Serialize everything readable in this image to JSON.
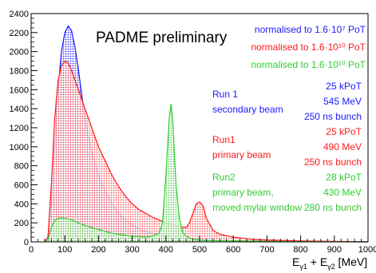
{
  "chart_data": {
    "type": "histogram",
    "title": "PADME preliminary",
    "xlabel": {
      "main": "E",
      "sub1": "γ1",
      "sep": " + E",
      "sub2": "γ2",
      "unit": " [MeV]"
    },
    "xlim": [
      0,
      1000
    ],
    "ylim": [
      0,
      2400
    ],
    "xticks": [
      0,
      100,
      200,
      300,
      400,
      500,
      600,
      700,
      800,
      900,
      1000
    ],
    "yticks": [
      0,
      200,
      400,
      600,
      800,
      1000,
      1200,
      1400,
      1600,
      1800,
      2000,
      2200,
      2400
    ],
    "legend": [
      {
        "text": "normalised to 1.6·10⁷ PoT",
        "color": "#1a1aff"
      },
      {
        "text": "normalised to 1.6·10¹⁰ PoT",
        "color": "#ff1a1a"
      },
      {
        "text": "normalised to 1.6·10¹⁰ PoT",
        "color": "#33cc33"
      }
    ],
    "series": [
      {
        "color": "#1a1aff",
        "x": [
          40,
          50,
          60,
          70,
          80,
          90,
          100,
          110,
          120,
          130,
          140,
          150,
          160,
          170,
          180,
          190,
          200,
          220,
          240,
          260,
          280,
          300,
          320,
          340,
          360,
          380,
          400,
          420,
          440,
          460,
          480,
          500,
          550,
          600,
          650,
          700,
          800,
          900,
          1000
        ],
        "y": [
          0,
          50,
          400,
          1000,
          1600,
          2000,
          2200,
          2270,
          2220,
          2050,
          1820,
          1550,
          1300,
          1100,
          950,
          820,
          700,
          530,
          400,
          300,
          230,
          180,
          140,
          110,
          90,
          70,
          60,
          50,
          40,
          35,
          30,
          25,
          15,
          10,
          8,
          5,
          3,
          2,
          0
        ]
      },
      {
        "color": "#ff1a1a",
        "x": [
          40,
          50,
          60,
          70,
          80,
          90,
          100,
          110,
          120,
          130,
          140,
          150,
          160,
          170,
          180,
          190,
          200,
          220,
          240,
          260,
          280,
          300,
          320,
          340,
          360,
          380,
          400,
          420,
          440,
          460,
          470,
          480,
          490,
          500,
          510,
          520,
          540,
          560,
          600,
          650,
          700,
          800,
          900,
          1000
        ],
        "y": [
          0,
          50,
          600,
          1300,
          1700,
          1850,
          1900,
          1880,
          1800,
          1700,
          1600,
          1500,
          1400,
          1300,
          1200,
          1100,
          1000,
          850,
          700,
          580,
          480,
          400,
          340,
          300,
          260,
          230,
          200,
          180,
          160,
          150,
          200,
          300,
          400,
          420,
          380,
          250,
          120,
          80,
          50,
          30,
          20,
          10,
          5,
          0
        ]
      },
      {
        "color": "#33cc33",
        "x": [
          40,
          50,
          60,
          70,
          80,
          100,
          120,
          140,
          160,
          180,
          200,
          220,
          240,
          260,
          280,
          300,
          320,
          340,
          360,
          380,
          390,
          400,
          410,
          415,
          420,
          430,
          440,
          450,
          460,
          470,
          480,
          500,
          520,
          600,
          700,
          800,
          1000
        ],
        "y": [
          0,
          20,
          150,
          220,
          250,
          250,
          230,
          200,
          170,
          150,
          130,
          110,
          90,
          80,
          70,
          60,
          55,
          50,
          60,
          90,
          200,
          700,
          1300,
          1450,
          1300,
          600,
          250,
          100,
          60,
          40,
          30,
          20,
          15,
          10,
          5,
          2,
          0
        ]
      }
    ]
  },
  "annotations": {
    "run1_secondary": {
      "left": [
        "Run 1",
        "secondary beam"
      ],
      "right": [
        "25 kPoT",
        "545 MeV",
        "250 ns bunch"
      ],
      "color": "#1a1aff"
    },
    "run1_primary": {
      "left": [
        "Run1",
        "primary beam"
      ],
      "right": [
        "25 kPoT",
        "490 MeV",
        "250 ns bunch"
      ],
      "color": "#ff1a1a"
    },
    "run2": {
      "left": [
        "Run2",
        "primary beam,",
        "moved mylar window"
      ],
      "right": [
        "28 kPoT",
        "430 MeV",
        "280 ns bunch"
      ],
      "color": "#33cc33"
    }
  }
}
